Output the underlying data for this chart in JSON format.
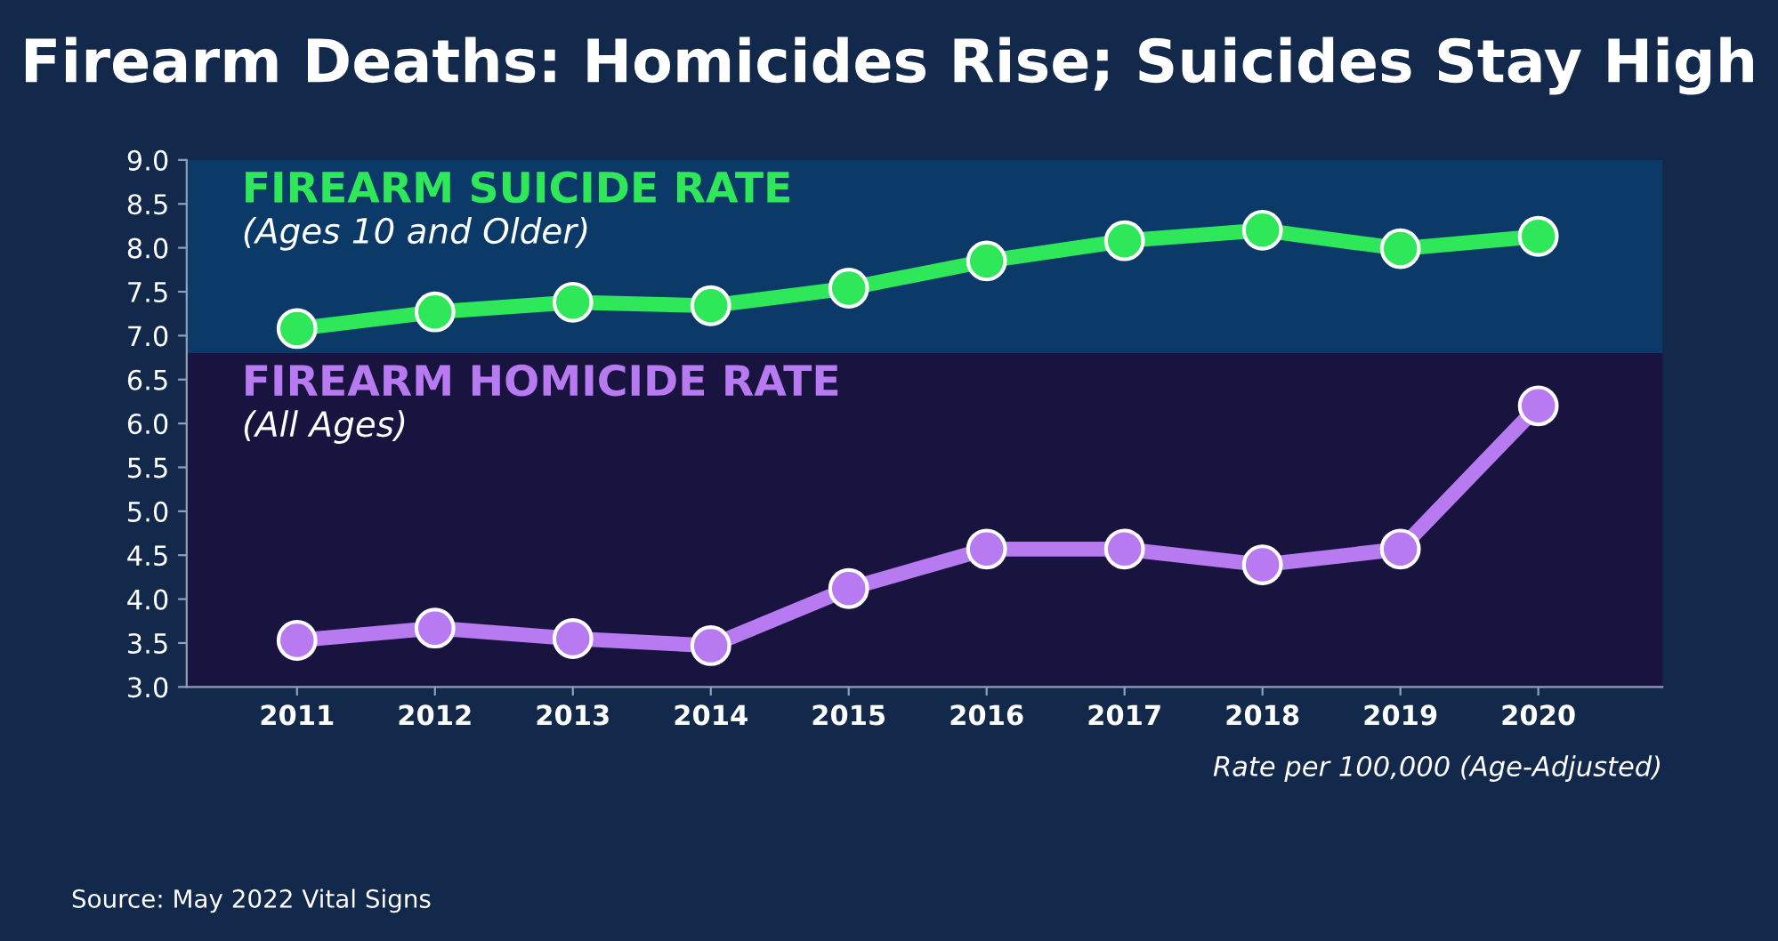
{
  "chart_data": {
    "type": "line",
    "title": "Firearm Deaths: Homicides Rise; Suicides Stay High",
    "categories": [
      "2011",
      "2012",
      "2013",
      "2014",
      "2015",
      "2016",
      "2017",
      "2018",
      "2019",
      "2020"
    ],
    "series": [
      {
        "name": "FIREARM SUICIDE RATE",
        "color": "#2ee85a",
        "values": [
          7.08,
          7.27,
          7.38,
          7.34,
          7.54,
          7.85,
          8.08,
          8.2,
          7.99,
          8.13
        ]
      },
      {
        "name": "FIREARM HOMICIDE RATE",
        "color": "#b77af0",
        "values": [
          3.53,
          3.67,
          3.55,
          3.47,
          4.12,
          4.57,
          4.57,
          4.39,
          4.57,
          6.2
        ]
      }
    ],
    "annotations": [
      "(Ages 10 and Older)",
      "(All Ages)",
      "Rate per 100,000 (Age-Adjusted)",
      "Source: May 2022 Vital Signs"
    ],
    "bands": [
      {
        "axis": "y",
        "from": 6.8,
        "to": 9.0,
        "color": "#0b3a68"
      },
      {
        "axis": "y",
        "from": 3.0,
        "to": 6.8,
        "color": "#18133f"
      }
    ],
    "ylim": [
      3.0,
      9.0
    ],
    "yticks": [
      {
        "value": 3.0,
        "label": "3.0"
      },
      {
        "value": 3.5,
        "label": "3.5"
      },
      {
        "value": 4.0,
        "label": "4.0"
      },
      {
        "value": 4.5,
        "label": "4.5"
      },
      {
        "value": 5.0,
        "label": "5.0"
      },
      {
        "value": 5.5,
        "label": "5.5"
      },
      {
        "value": 6.0,
        "label": "6.0"
      },
      {
        "value": 6.5,
        "label": "6.5"
      },
      {
        "value": 7.0,
        "label": "7.0"
      },
      {
        "value": 7.5,
        "label": "7.5"
      },
      {
        "value": 8.0,
        "label": "8.0"
      },
      {
        "value": 8.5,
        "label": "8.5"
      },
      {
        "value": 9.0,
        "label": "9.0"
      }
    ],
    "grid": false,
    "legend": false,
    "marker": "circle",
    "line_style": "solid"
  }
}
